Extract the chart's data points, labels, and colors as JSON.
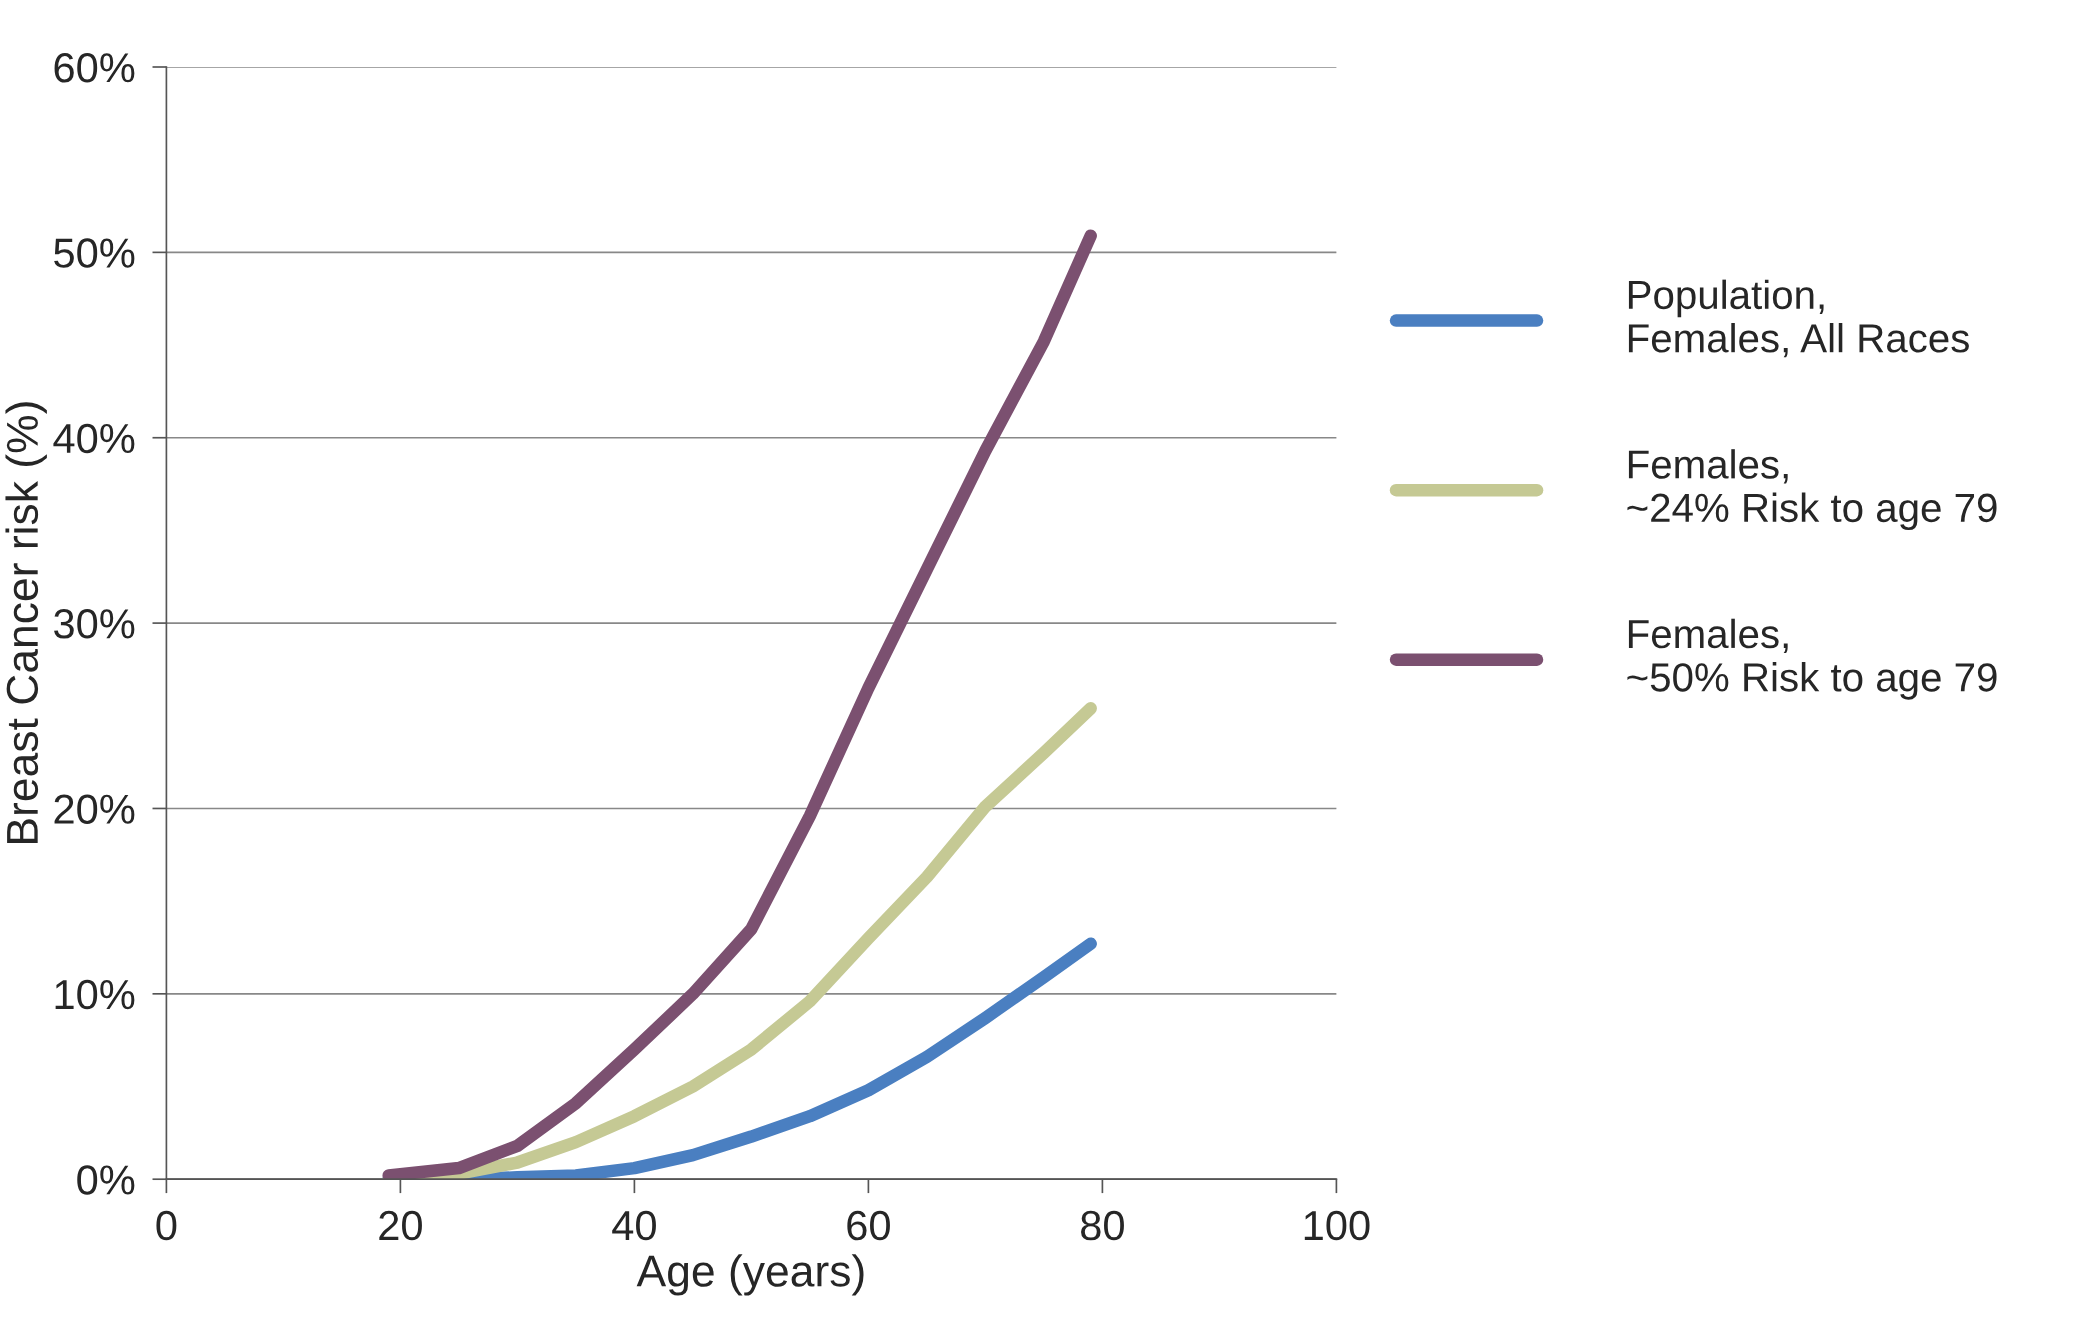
{
  "chart_data": {
    "type": "line",
    "xlabel": "Age (years)",
    "ylabel": "Breast Cancer risk (%)",
    "x": [
      19,
      25,
      30,
      35,
      40,
      45,
      50,
      55,
      60,
      65,
      70,
      75,
      79
    ],
    "series": [
      {
        "name": "Population,\nFemales, All Races",
        "color": "#4a7fc1",
        "values": [
          0,
          0,
          0.1,
          0.2,
          0.6,
          1.3,
          2.3,
          3.4,
          4.8,
          6.6,
          8.7,
          10.9,
          12.7
        ]
      },
      {
        "name": "Females,\n~24% Risk to age 79",
        "color": "#c5c994",
        "values": [
          0,
          0.3,
          0.9,
          2.0,
          3.4,
          5.0,
          7.0,
          9.6,
          13.0,
          16.3,
          20.1,
          23.0,
          25.4
        ]
      },
      {
        "name": "Females,\n~50% Risk to age 79",
        "color": "#7b5070",
        "values": [
          0.2,
          0.6,
          1.8,
          4.1,
          7.0,
          10.0,
          13.5,
          19.6,
          26.5,
          32.9,
          39.3,
          45.2,
          50.9
        ]
      }
    ],
    "xlim": [
      0,
      100
    ],
    "xticks": [
      0,
      20,
      40,
      60,
      80,
      100
    ],
    "ylim": [
      0,
      60
    ],
    "yticks": [
      {
        "value": 0,
        "label": "0%"
      },
      {
        "value": 10,
        "label": "10%"
      },
      {
        "value": 20,
        "label": "20%"
      },
      {
        "value": 30,
        "label": "30%"
      },
      {
        "value": 40,
        "label": "40%"
      },
      {
        "value": 50,
        "label": "50%"
      },
      {
        "value": 60,
        "label": "60%"
      }
    ],
    "grid": "y",
    "legend": "right",
    "marker": "none",
    "line_style": "solid"
  }
}
